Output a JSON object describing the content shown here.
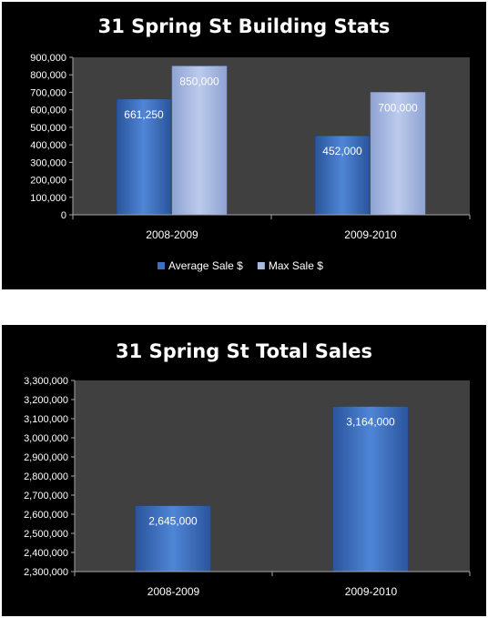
{
  "colors": {
    "panel_bg": "#000000",
    "plot_bg": "#404040",
    "axis": "#a6a6a6",
    "average_bar": "#3a6fc4",
    "max_bar": "#a7b9e0",
    "text": "#ffffff"
  },
  "chart_data": [
    {
      "type": "bar",
      "title": "31 Spring St Building Stats",
      "categories": [
        "2008-2009",
        "2009-2010"
      ],
      "series": [
        {
          "name": "Average Sale $",
          "values": [
            661250,
            452000
          ],
          "labels": [
            "661,250",
            "452,000"
          ]
        },
        {
          "name": "Max Sale $",
          "values": [
            850000,
            700000
          ],
          "labels": [
            "850,000",
            "700,000"
          ]
        }
      ],
      "ylim": [
        0,
        900000
      ],
      "yticks": [
        0,
        100000,
        200000,
        300000,
        400000,
        500000,
        600000,
        700000,
        800000,
        900000
      ],
      "ytick_labels": [
        "0",
        "100,000",
        "200,000",
        "300,000",
        "400,000",
        "500,000",
        "600,000",
        "700,000",
        "800,000",
        "900,000"
      ],
      "grid": false,
      "legend": "bottom"
    },
    {
      "type": "bar",
      "title": "31 Spring St Total Sales",
      "categories": [
        "2008-2009",
        "2009-2010"
      ],
      "series": [
        {
          "values": [
            2645000,
            3164000
          ],
          "labels": [
            "2,645,000",
            "3,164,000"
          ]
        }
      ],
      "ylim": [
        2300000,
        3300000
      ],
      "yticks": [
        2300000,
        2400000,
        2500000,
        2600000,
        2700000,
        2800000,
        2900000,
        3000000,
        3100000,
        3200000,
        3300000
      ],
      "ytick_labels": [
        "2,300,000",
        "2,400,000",
        "2,500,000",
        "2,600,000",
        "2,700,000",
        "2,800,000",
        "2,900,000",
        "3,000,000",
        "3,100,000",
        "3,200,000",
        "3,300,000"
      ],
      "grid": false,
      "legend": "none"
    }
  ]
}
